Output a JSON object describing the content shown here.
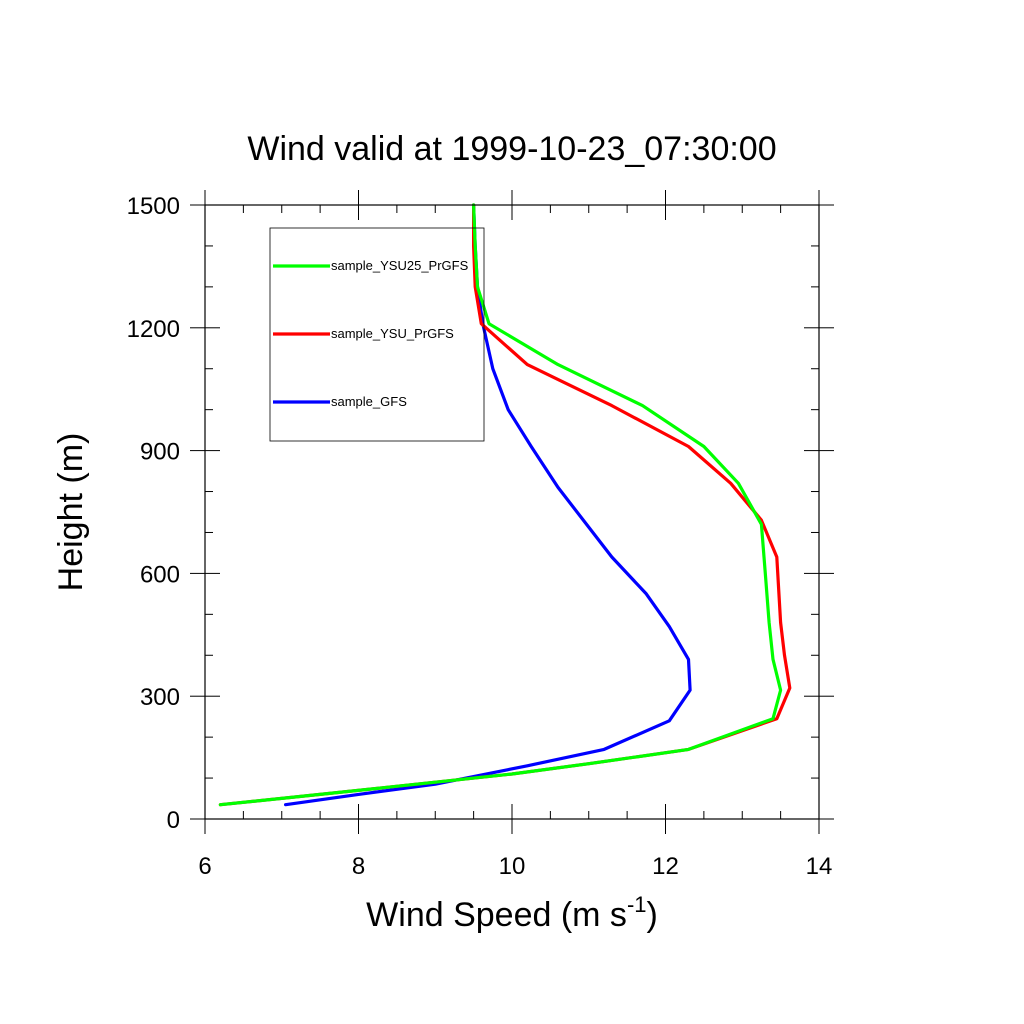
{
  "chart_data": {
    "type": "line",
    "title": "Wind valid at 1999-10-23_07:30:00",
    "xlabel": "Wind Speed (m s",
    "xlabel_sup": "-1",
    "xlabel_close": ")",
    "ylabel": "Height (m)",
    "xlim": [
      6,
      14
    ],
    "ylim": [
      0,
      1500
    ],
    "xticks": [
      6,
      8,
      10,
      12,
      14
    ],
    "yticks": [
      0,
      300,
      600,
      900,
      1200,
      1500
    ],
    "grid": false,
    "legend_position": "top-left",
    "series": [
      {
        "name": "sample_YSU25_PrGFS",
        "color": "#00ff00",
        "points": [
          [
            6.2,
            35
          ],
          [
            7.5,
            60
          ],
          [
            9.0,
            90
          ],
          [
            10.0,
            110
          ],
          [
            11.0,
            135
          ],
          [
            12.3,
            170
          ],
          [
            13.4,
            245
          ],
          [
            13.5,
            315
          ],
          [
            13.4,
            390
          ],
          [
            13.35,
            480
          ],
          [
            13.3,
            600
          ],
          [
            13.25,
            720
          ],
          [
            12.95,
            820
          ],
          [
            12.5,
            910
          ],
          [
            11.7,
            1010
          ],
          [
            10.6,
            1110
          ],
          [
            9.7,
            1210
          ],
          [
            9.55,
            1300
          ],
          [
            9.52,
            1400
          ],
          [
            9.5,
            1500
          ]
        ]
      },
      {
        "name": "sample_YSU_PrGFS",
        "color": "#ff0000",
        "points": [
          [
            6.2,
            35
          ],
          [
            7.5,
            60
          ],
          [
            9.0,
            90
          ],
          [
            10.0,
            110
          ],
          [
            11.0,
            135
          ],
          [
            12.3,
            170
          ],
          [
            13.45,
            245
          ],
          [
            13.62,
            320
          ],
          [
            13.55,
            400
          ],
          [
            13.5,
            480
          ],
          [
            13.45,
            640
          ],
          [
            13.25,
            730
          ],
          [
            12.85,
            820
          ],
          [
            12.3,
            910
          ],
          [
            11.3,
            1010
          ],
          [
            10.2,
            1110
          ],
          [
            9.6,
            1210
          ],
          [
            9.52,
            1300
          ],
          [
            9.5,
            1400
          ],
          [
            9.5,
            1500
          ]
        ]
      },
      {
        "name": "sample_GFS",
        "color": "#0000ff",
        "points": [
          [
            7.05,
            35
          ],
          [
            8.0,
            60
          ],
          [
            9.0,
            85
          ],
          [
            9.4,
            100
          ],
          [
            10.2,
            130
          ],
          [
            11.2,
            170
          ],
          [
            12.05,
            240
          ],
          [
            12.32,
            315
          ],
          [
            12.3,
            390
          ],
          [
            12.05,
            470
          ],
          [
            11.75,
            550
          ],
          [
            11.3,
            640
          ],
          [
            10.6,
            810
          ],
          [
            10.25,
            910
          ],
          [
            9.95,
            1000
          ],
          [
            9.75,
            1100
          ],
          [
            9.62,
            1210
          ],
          [
            9.55,
            1300
          ],
          [
            9.52,
            1400
          ],
          [
            9.5,
            1500
          ]
        ]
      }
    ]
  }
}
